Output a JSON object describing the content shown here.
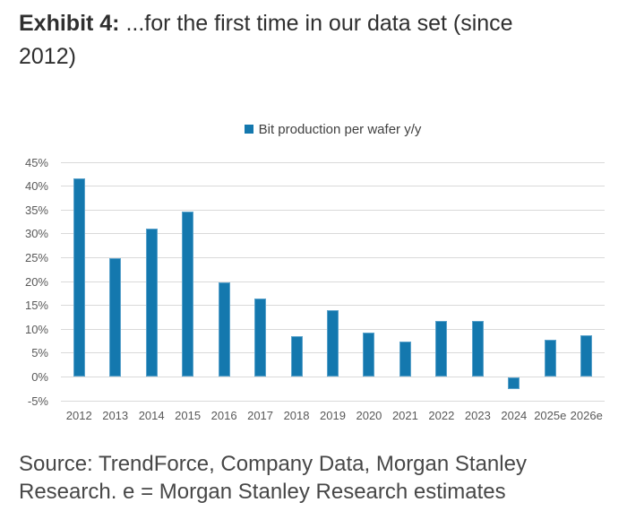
{
  "header": {
    "title_prefix": "Exhibit 4:",
    "title_rest_line1": "...for the first time in our data set (since",
    "title_line2": "2012)"
  },
  "chart_data": {
    "type": "bar",
    "legend": [
      "Bit production per wafer y/y"
    ],
    "legend_position": "top-center",
    "categories": [
      "2012",
      "2013",
      "2014",
      "2015",
      "2016",
      "2017",
      "2018",
      "2019",
      "2020",
      "2021",
      "2022",
      "2023",
      "2024",
      "2025e",
      "2026e"
    ],
    "values": [
      41.5,
      24.9,
      31.0,
      34.6,
      19.7,
      16.3,
      8.4,
      13.9,
      9.2,
      7.4,
      11.6,
      11.7,
      -2.5,
      7.8,
      8.7
    ],
    "ylim": [
      -5,
      45
    ],
    "ytick_step": 5,
    "ytick_suffix": "%",
    "grid": "horizontal",
    "bar_color": "#1478ae",
    "bar_border_color": "#5aa2cb",
    "gridline_color": "#d9d9d9",
    "tick_label_color": "#595959"
  },
  "footer": {
    "source_line1": "Source: TrendForce, Company Data, Morgan Stanley",
    "source_line2": "Research. e = Morgan Stanley Research estimates"
  }
}
